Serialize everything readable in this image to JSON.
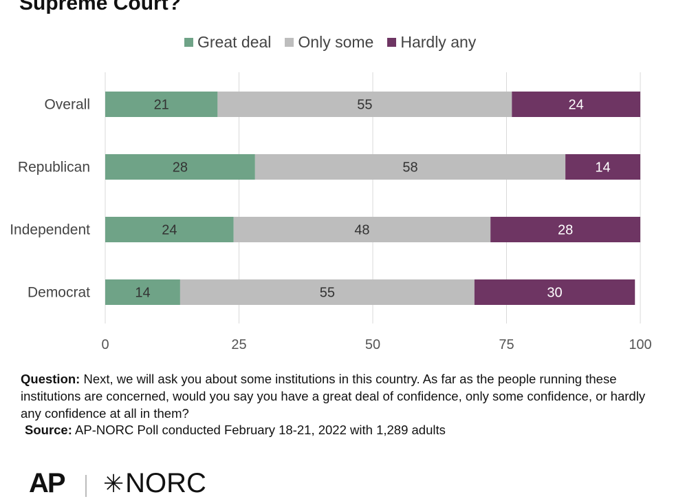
{
  "title": "Supreme Court?",
  "colors": {
    "great": "#6fa387",
    "some": "#bdbdbd",
    "hardly": "#6e3563"
  },
  "chart_data": {
    "type": "bar",
    "orientation": "horizontal",
    "stacked": true,
    "categories": [
      "Overall",
      "Republican",
      "Independent",
      "Democrat"
    ],
    "series": [
      {
        "name": "Great deal",
        "values": [
          21,
          28,
          24,
          14
        ]
      },
      {
        "name": "Only some",
        "values": [
          55,
          58,
          48,
          55
        ]
      },
      {
        "name": "Hardly any",
        "values": [
          24,
          14,
          28,
          30
        ]
      }
    ],
    "xlim": [
      0,
      100
    ],
    "xticks": [
      0,
      25,
      50,
      75,
      100
    ],
    "grid": true,
    "legend_position": "top"
  },
  "footer": {
    "question_label": "Question:",
    "question_text": "Next, we will ask you about some institutions in this country. As far as the people running these institutions are concerned, would you say you have a great deal of confidence, only some confidence, or hardly any confidence at all in them?",
    "source_label": "Source:",
    "source_text": "AP-NORC Poll conducted February 18-21, 2022 with 1,289 adults"
  },
  "logos": {
    "ap": "AP",
    "norc": "NORC"
  }
}
